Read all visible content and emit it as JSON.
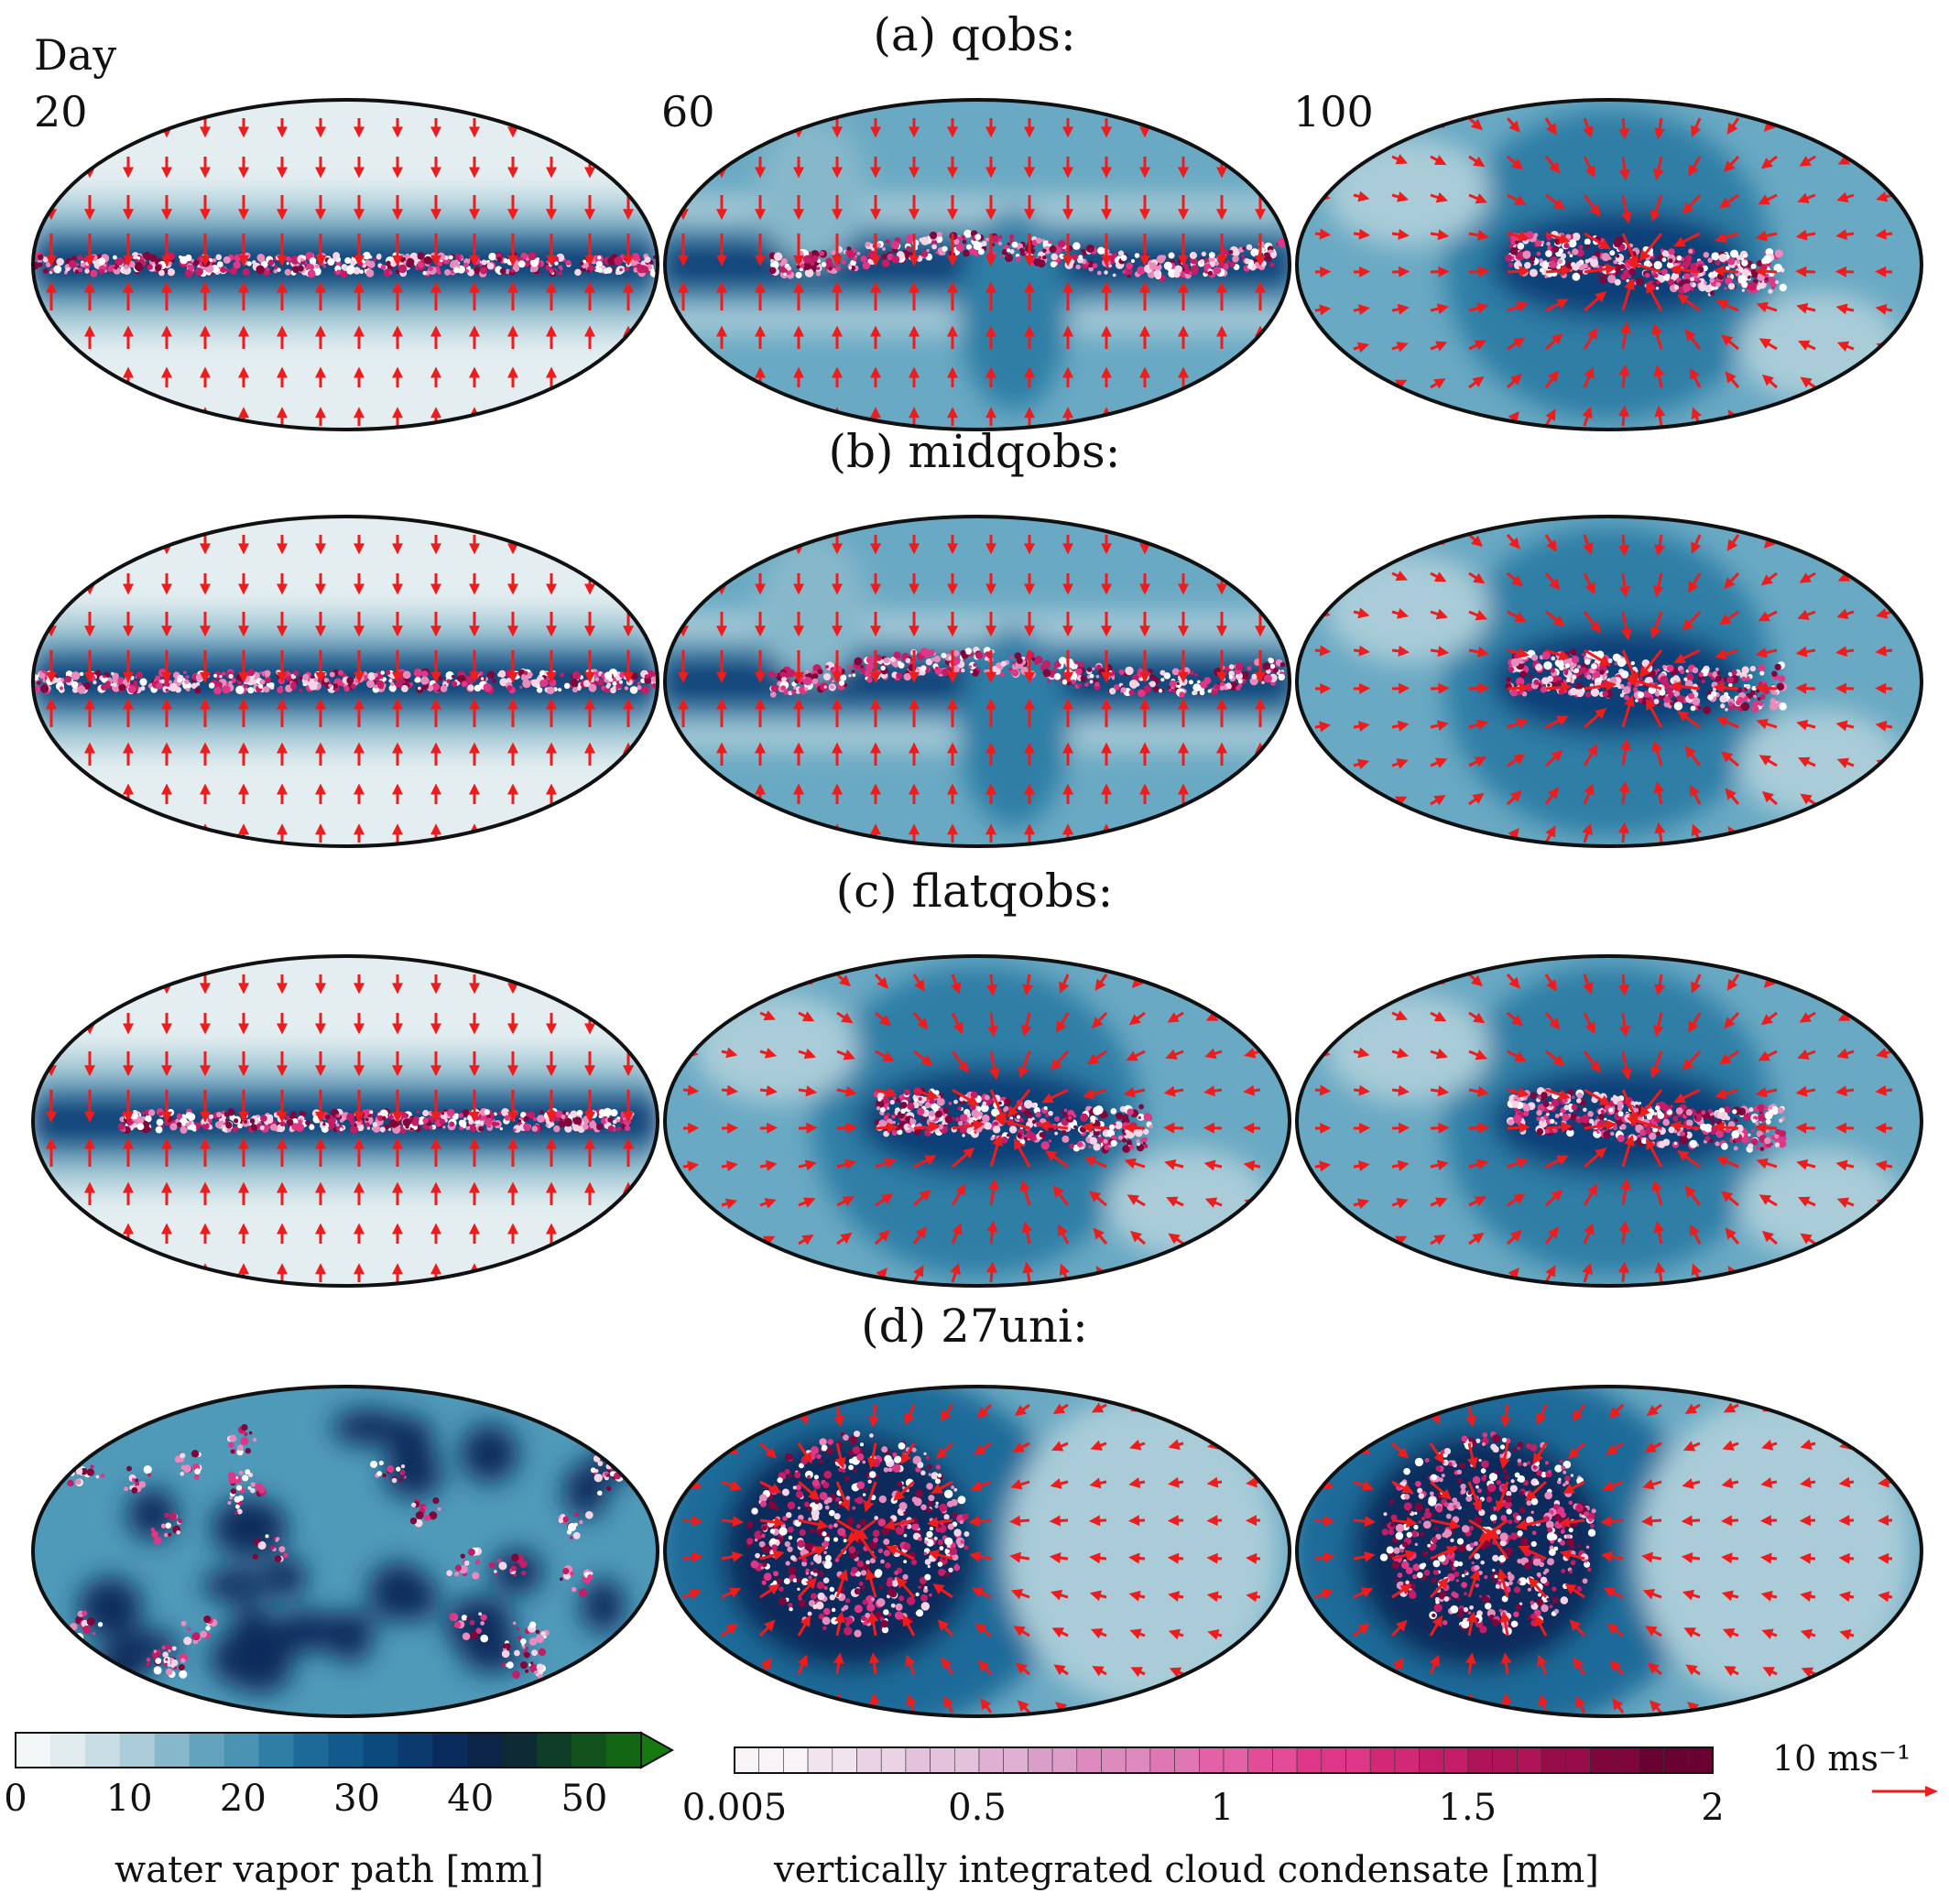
{
  "figure": {
    "day_prefix": "Day",
    "days": [
      "20",
      "60",
      "100"
    ],
    "rows": [
      {
        "title": "(a) qobs:",
        "pattern": "band",
        "states": [
          "band-narrow",
          "band-wavy",
          "cluster-center"
        ]
      },
      {
        "title": "(b) midqobs:",
        "pattern": "band",
        "states": [
          "band-narrow",
          "band-wavy",
          "cluster-center"
        ]
      },
      {
        "title": "(c) flatqobs:",
        "pattern": "band",
        "states": [
          "band-narrow",
          "cluster-center",
          "cluster-center"
        ]
      },
      {
        "title": "(d) 27uni:",
        "pattern": "patches",
        "states": [
          "patches",
          "cluster-left",
          "cluster-left"
        ]
      }
    ]
  },
  "colorbars": {
    "water_vapor": {
      "label": "water vapor path [mm]",
      "ticks": [
        "0",
        "10",
        "20",
        "30",
        "40",
        "50"
      ],
      "range": [
        0,
        55
      ],
      "colors": [
        "#f4f7f8",
        "#e2ecef",
        "#c8dde4",
        "#a9ccd8",
        "#86b8ca",
        "#63a3bd",
        "#4a93b2",
        "#2f7ea6",
        "#1d6a99",
        "#125a8c",
        "#0c4a7e",
        "#0a3a6e",
        "#0a2c5c",
        "#0b2448",
        "#0d2a35",
        "#0f3d28",
        "#11521d",
        "#136614",
        "#157a10"
      ]
    },
    "condensate": {
      "label": "vertically integrated cloud condensate [mm]",
      "ticks": [
        "0.005",
        "0.5",
        "1",
        "1.5",
        "2"
      ],
      "range": [
        0.005,
        2
      ],
      "colors": [
        "#f8f4f7",
        "#f1e4ee",
        "#ead3e4",
        "#e4c2db",
        "#dfb0d2",
        "#da9ec9",
        "#dd8bbf",
        "#e176b4",
        "#e561a7",
        "#e44c98",
        "#df3787",
        "#d32876",
        "#c21d66",
        "#ae1456",
        "#970c48",
        "#7f063b",
        "#690230"
      ]
    },
    "wind_scale": {
      "label": "10 ms⁻¹",
      "color": "#ee1c1c"
    }
  }
}
